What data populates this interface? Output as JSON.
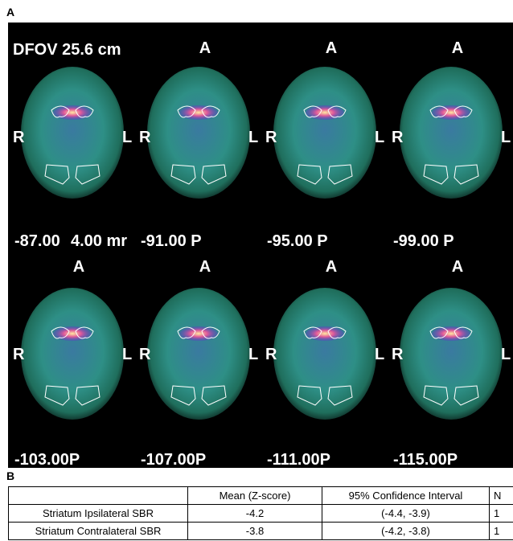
{
  "panel_a": {
    "label": "A",
    "header": "DFOV 25.6 cm",
    "overlay": "4.00 mr",
    "slices": [
      {
        "left": "R",
        "right": "L",
        "bottom": "-87.00"
      },
      {
        "top": "A",
        "left": "R",
        "right": "L",
        "bottom": "-91.00 P"
      },
      {
        "top": "A",
        "left": "R",
        "right": "L",
        "bottom": "-95.00 P"
      },
      {
        "top": "A",
        "left": "R",
        "right": "L",
        "bottom": "-99.00 P"
      },
      {
        "top": "A",
        "left": "R",
        "right": "L",
        "bottom": "-103.00P"
      },
      {
        "top": "A",
        "left": "R",
        "right": "L",
        "bottom": "-107.00P"
      },
      {
        "top": "A",
        "left": "R",
        "right": "L",
        "bottom": "-111.00P"
      },
      {
        "top": "A",
        "left": "R",
        "right": "L",
        "bottom": "-115.00P"
      }
    ]
  },
  "panel_b": {
    "label": "B",
    "table": {
      "header": [
        "Mean (Z-score)",
        "95% Confidence Interval",
        "N"
      ],
      "rows": [
        [
          "Striatum Ipsilateral SBR",
          "-4.2",
          "(-4.4, -3.9)",
          "1"
        ],
        [
          "Striatum Contralateral SBR",
          "-3.8",
          "(-4.2, -3.8)",
          "1"
        ]
      ]
    }
  }
}
